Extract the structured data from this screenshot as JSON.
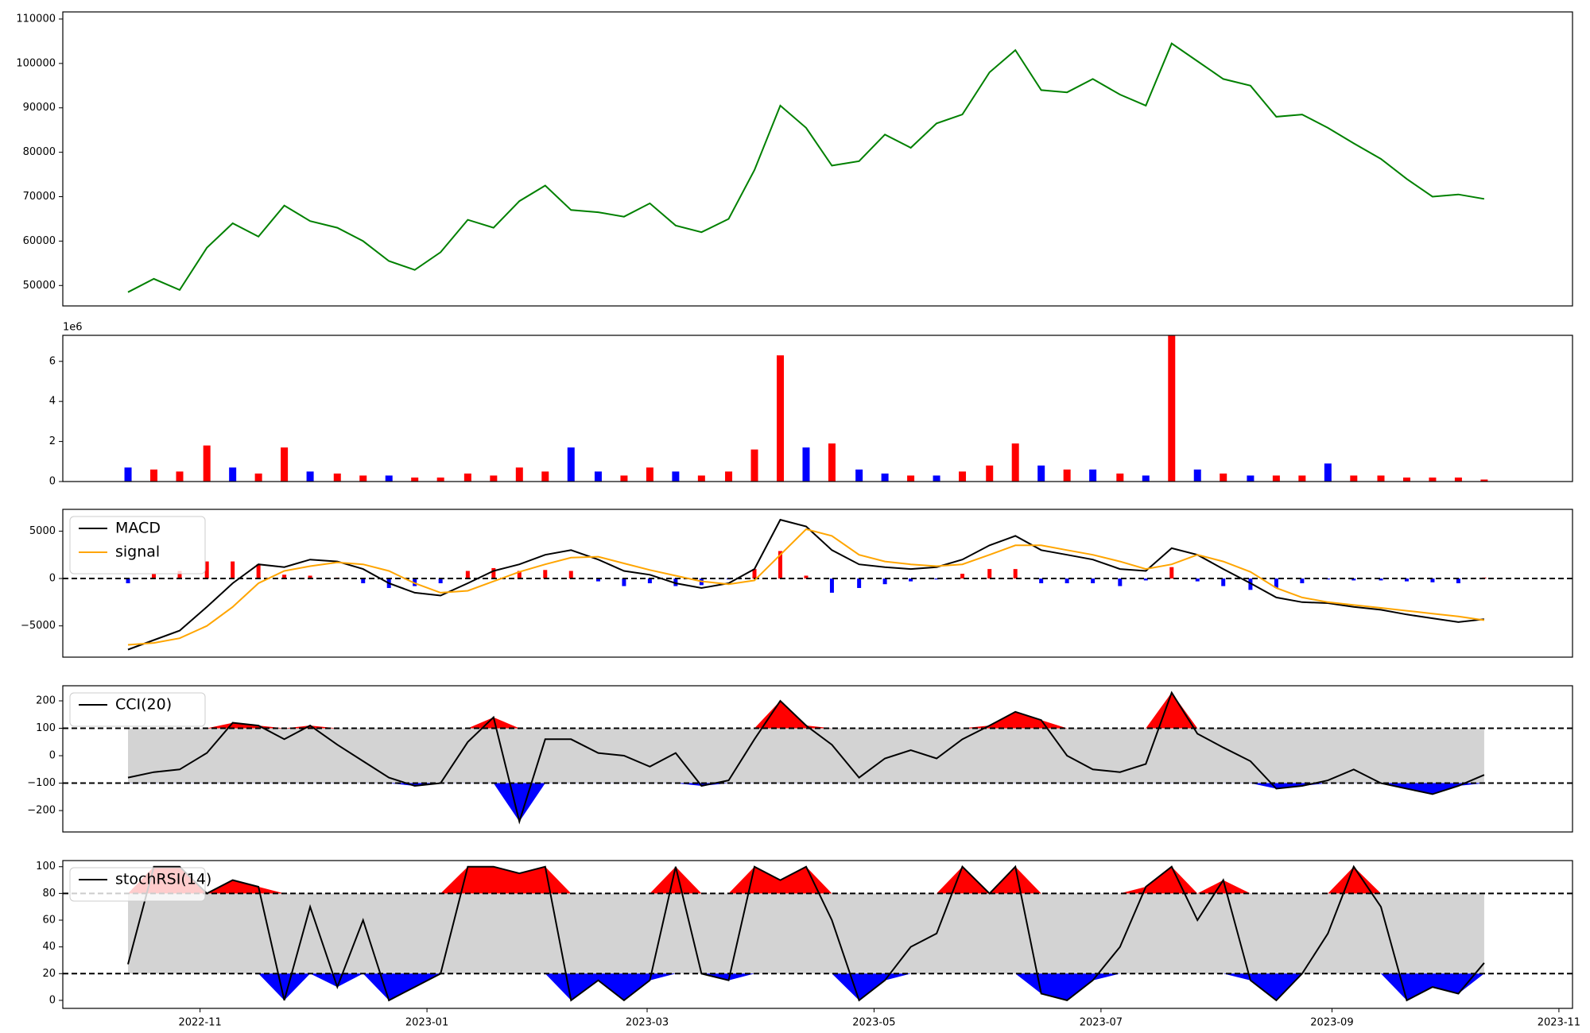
{
  "chart_data": [
    {
      "type": "line",
      "x": [
        2022.78,
        2022.799,
        2022.818,
        2022.838,
        2022.857,
        2022.876,
        2022.895,
        2022.914,
        2022.934,
        2022.953,
        2022.972,
        2022.991,
        2023.01,
        2023.03,
        2023.049,
        2023.068,
        2023.087,
        2023.106,
        2023.126,
        2023.145,
        2023.164,
        2023.183,
        2023.202,
        2023.222,
        2023.241,
        2023.26,
        2023.279,
        2023.298,
        2023.318,
        2023.337,
        2023.356,
        2023.375,
        2023.394,
        2023.414,
        2023.433,
        2023.452,
        2023.471,
        2023.49,
        2023.51,
        2023.529,
        2023.548,
        2023.567,
        2023.586,
        2023.606,
        2023.625,
        2023.644,
        2023.663,
        2023.682,
        2023.702,
        2023.721,
        2023.74,
        2023.759,
        2023.778
      ],
      "xlim": [
        2022.732,
        2023.843
      ],
      "ylim": [
        45400,
        111600
      ],
      "yticks": [
        50000,
        60000,
        70000,
        80000,
        90000,
        100000,
        110000
      ],
      "series": [
        {
          "color": "green",
          "values": [
            48500,
            51500,
            49000,
            58500,
            64000,
            61000,
            68000,
            64500,
            63000,
            60000,
            55500,
            53500,
            57500,
            64800,
            63000,
            69000,
            72500,
            67000,
            66500,
            65500,
            68500,
            63500,
            62000,
            65000,
            76000,
            90500,
            85500,
            77000,
            78000,
            84000,
            81000,
            86500,
            88500,
            98000,
            103000,
            94000,
            93500,
            96500,
            93000,
            90500,
            104500,
            100500,
            96500,
            95000,
            88000,
            88500,
            85500,
            82000,
            78500,
            74000,
            70000,
            70500,
            69500
          ]
        }
      ]
    },
    {
      "type": "bar",
      "offset_label": "1e6",
      "ylim": [
        0,
        7.3
      ],
      "yticks": [
        0,
        2,
        4,
        6
      ],
      "series": [
        {
          "values": [
            0.7,
            0.6,
            0.5,
            1.8,
            0.7,
            0.4,
            1.7,
            0.5,
            0.4,
            0.3,
            0.3,
            0.2,
            0.2,
            0.4,
            0.3,
            0.7,
            0.5,
            1.7,
            0.5,
            0.3,
            0.7,
            0.5,
            0.3,
            0.5,
            1.6,
            6.3,
            1.7,
            1.9,
            0.6,
            0.4,
            0.3,
            0.3,
            0.5,
            0.8,
            1.9,
            0.8,
            0.6,
            0.6,
            0.4,
            0.3,
            7.3,
            0.6,
            0.4,
            0.3,
            0.3,
            0.3,
            0.9,
            0.3,
            0.3,
            0.2,
            0.2,
            0.2,
            0.1
          ],
          "colors": [
            "blue",
            "red",
            "red",
            "red",
            "blue",
            "red",
            "red",
            "blue",
            "red",
            "red",
            "blue",
            "red",
            "red",
            "red",
            "red",
            "red",
            "red",
            "blue",
            "blue",
            "red",
            "red",
            "blue",
            "red",
            "red",
            "red",
            "red",
            "blue",
            "red",
            "blue",
            "blue",
            "red",
            "blue",
            "red",
            "red",
            "red",
            "blue",
            "red",
            "blue",
            "red",
            "blue",
            "red",
            "blue",
            "red",
            "blue",
            "red",
            "red",
            "blue",
            "red",
            "red",
            "red",
            "red",
            "red",
            "red"
          ]
        }
      ]
    },
    {
      "type": "combo",
      "ylim": [
        -8300,
        7300
      ],
      "yticks": [
        {
          "value": -5000,
          "label": "−5000"
        },
        0,
        5000
      ],
      "hlines": [
        0
      ],
      "legend": "upper left",
      "series": [
        {
          "kind": "bar",
          "positive_color": "red",
          "negative_color": "blue",
          "values": [
            -500,
            500,
            800,
            1800,
            1800,
            1500,
            400,
            300,
            100,
            -500,
            -1000,
            -800,
            -500,
            800,
            1100,
            800,
            900,
            800,
            -300,
            -800,
            -500,
            -800,
            -700,
            -100,
            1000,
            2900,
            300,
            -1500,
            -1000,
            -600,
            -300,
            -100,
            500,
            1000,
            1000,
            -500,
            -500,
            -500,
            -800,
            -200,
            1200,
            -300,
            -800,
            -1200,
            -1000,
            -500,
            -100,
            -200,
            -200,
            -300,
            -400,
            -500,
            100
          ]
        },
        {
          "name": "MACD",
          "color": "black",
          "values": [
            -7500,
            -6500,
            -5500,
            -3000,
            -500,
            1500,
            1200,
            2000,
            1800,
            1000,
            -500,
            -1500,
            -1800,
            -500,
            800,
            1500,
            2500,
            3000,
            2000,
            800,
            400,
            -500,
            -1000,
            -500,
            1000,
            6200,
            5500,
            3000,
            1500,
            1200,
            1000,
            1200,
            2000,
            3500,
            4500,
            3000,
            2500,
            2000,
            1000,
            800,
            3200,
            2500,
            1000,
            -500,
            -2000,
            -2500,
            -2600,
            -3000,
            -3300,
            -3800,
            -4200,
            -4600,
            -4300
          ]
        },
        {
          "name": "signal",
          "color": "orange",
          "values": [
            -7000,
            -6800,
            -6300,
            -5000,
            -3000,
            -500,
            800,
            1300,
            1700,
            1500,
            800,
            -500,
            -1500,
            -1300,
            -300,
            700,
            1500,
            2200,
            2300,
            1600,
            900,
            300,
            -300,
            -600,
            -200,
            2500,
            5200,
            4500,
            2500,
            1800,
            1500,
            1300,
            1500,
            2500,
            3500,
            3500,
            3000,
            2500,
            1800,
            1000,
            1500,
            2500,
            1800,
            700,
            -1000,
            -2000,
            -2500,
            -2800,
            -3100,
            -3400,
            -3700,
            -4000,
            -4400
          ]
        }
      ]
    },
    {
      "type": "band",
      "ylim": [
        -278,
        255
      ],
      "yticks": [
        {
          "value": -200,
          "label": "−200"
        },
        {
          "value": -100,
          "label": "−100"
        },
        0,
        100,
        200
      ],
      "bands": [
        -100,
        100
      ],
      "band_color": "#d3d3d3",
      "above_color": "red",
      "below_color": "blue",
      "legend": "upper left",
      "series": [
        {
          "name": "CCI(20)",
          "color": "black",
          "values": [
            -80,
            -60,
            -50,
            10,
            120,
            110,
            60,
            110,
            40,
            -20,
            -80,
            -110,
            -100,
            50,
            140,
            -240,
            60,
            60,
            10,
            0,
            -40,
            10,
            -110,
            -90,
            60,
            200,
            110,
            40,
            -80,
            -10,
            20,
            -10,
            60,
            110,
            160,
            130,
            0,
            -50,
            -60,
            -30,
            230,
            80,
            30,
            -20,
            -120,
            -110,
            -90,
            -50,
            -100,
            -120,
            -140,
            -110,
            -70
          ]
        }
      ]
    },
    {
      "type": "band",
      "ylim": [
        -6,
        104.6
      ],
      "yticks": [
        0,
        20,
        40,
        60,
        80,
        100
      ],
      "xticks": [
        {
          "value": 2022.833,
          "label": "2022-11"
        },
        {
          "value": 2023.0,
          "label": "2023-01"
        },
        {
          "value": 2023.162,
          "label": "2023-03"
        },
        {
          "value": 2023.329,
          "label": "2023-05"
        },
        {
          "value": 2023.496,
          "label": "2023-07"
        },
        {
          "value": 2023.666,
          "label": "2023-09"
        },
        {
          "value": 2023.833,
          "label": "2023-11"
        }
      ],
      "bands": [
        20,
        80
      ],
      "band_color": "#d3d3d3",
      "above_color": "red",
      "below_color": "blue",
      "legend": "upper left",
      "series": [
        {
          "name": "stochRSI(14)",
          "color": "black",
          "values": [
            27,
            100,
            100,
            80,
            90,
            85,
            0,
            70,
            10,
            60,
            0,
            10,
            20,
            100,
            100,
            95,
            100,
            0,
            15,
            0,
            15,
            100,
            20,
            15,
            100,
            90,
            100,
            60,
            0,
            15,
            40,
            50,
            100,
            80,
            100,
            5,
            0,
            15,
            40,
            85,
            100,
            60,
            90,
            15,
            0,
            20,
            50,
            100,
            70,
            0,
            10,
            5,
            28
          ]
        }
      ]
    }
  ]
}
